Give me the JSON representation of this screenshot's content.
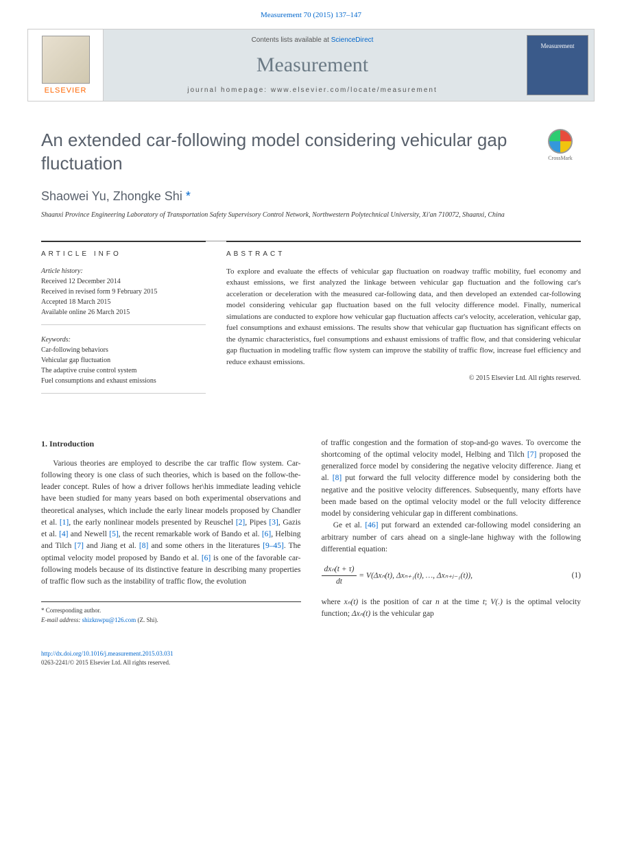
{
  "header": {
    "citation": "Measurement 70 (2015) 137–147",
    "contents_prefix": "Contents lists available at ",
    "contents_link": "ScienceDirect",
    "journal_name": "Measurement",
    "homepage_prefix": "journal homepage: ",
    "homepage_url": "www.elsevier.com/locate/measurement",
    "publisher": "ELSEVIER",
    "cover_label": "Measurement"
  },
  "article": {
    "title": "An extended car-following model considering vehicular gap fluctuation",
    "crossmark": "CrossMark",
    "authors": "Shaowei Yu, Zhongke Shi",
    "corr_marker": "*",
    "affiliation": "Shaanxi Province Engineering Laboratory of Transportation Safety Supervisory Control Network, Northwestern Polytechnical University, Xi'an 710072, Shaanxi, China"
  },
  "info": {
    "heading": "ARTICLE INFO",
    "history_label": "Article history:",
    "received": "Received 12 December 2014",
    "revised": "Received in revised form 9 February 2015",
    "accepted": "Accepted 18 March 2015",
    "online": "Available online 26 March 2015",
    "keywords_label": "Keywords:",
    "kw1": "Car-following behaviors",
    "kw2": "Vehicular gap fluctuation",
    "kw3": "The adaptive cruise control system",
    "kw4": "Fuel consumptions and exhaust emissions"
  },
  "abstract": {
    "heading": "ABSTRACT",
    "text": "To explore and evaluate the effects of vehicular gap fluctuation on roadway traffic mobility, fuel economy and exhaust emissions, we first analyzed the linkage between vehicular gap fluctuation and the following car's acceleration or deceleration with the measured car-following data, and then developed an extended car-following model considering vehicular gap fluctuation based on the full velocity difference model. Finally, numerical simulations are conducted to explore how vehicular gap fluctuation affects car's velocity, acceleration, vehicular gap, fuel consumptions and exhaust emissions. The results show that vehicular gap fluctuation has significant effects on the dynamic characteristics, fuel consumptions and exhaust emissions of traffic flow, and that considering vehicular gap fluctuation in modeling traffic flow system can improve the stability of traffic flow, increase fuel efficiency and reduce exhaust emissions.",
    "copyright": "© 2015 Elsevier Ltd. All rights reserved."
  },
  "body": {
    "section_num": "1. Introduction",
    "col1_p1_a": "Various theories are employed to describe the car traffic flow system. Car-following theory is one class of such theories, which is based on the follow-the-leader concept. Rules of how a driver follows her\\his immediate leading vehicle have been studied for many years based on both experimental observations and theoretical analyses, which include the early linear models proposed by Chandler et al. ",
    "ref1": "[1]",
    "col1_p1_b": ", the early nonlinear models presented by Reuschel ",
    "ref2": "[2]",
    "col1_p1_c": ", Pipes ",
    "ref3": "[3]",
    "col1_p1_d": ", Gazis et al. ",
    "ref4": "[4]",
    "col1_p1_e": " and Newell ",
    "ref5": "[5]",
    "col1_p1_f": ", the recent remarkable work of Bando et al. ",
    "ref6": "[6]",
    "col1_p1_g": ", Helbing and Tilch ",
    "ref7": "[7]",
    "col1_p1_h": " and Jiang et al. ",
    "ref8": "[8]",
    "col1_p1_i": " and some others in the literatures ",
    "ref9": "[9–45]",
    "col1_p1_j": ". The optimal velocity model proposed by Bando et al. ",
    "ref6b": "[6]",
    "col1_p1_k": " is one of the favorable car-following models because of its distinctive feature in describing many properties of traffic flow such as the instability of traffic flow, the evolution",
    "col2_p1_a": "of traffic congestion and the formation of stop-and-go waves. To overcome the shortcoming of the optimal velocity model, Helbing and Tilch ",
    "ref7b": "[7]",
    "col2_p1_b": " proposed the generalized force model by considering the negative velocity difference. Jiang et al. ",
    "ref8b": "[8]",
    "col2_p1_c": " put forward the full velocity difference model by considering both the negative and the positive velocity differences. Subsequently, many efforts have been made based on the optimal velocity model or the full velocity difference model by considering vehicular gap in different combinations.",
    "col2_p2_a": "Ge et al. ",
    "ref46": "[46]",
    "col2_p2_b": " put forward an extended car-following model considering an arbitrary number of cars ahead on a single-lane highway with the following differential equation:",
    "eq_num": "(1)",
    "col2_p3_a": "where ",
    "col2_p3_b": " is the position of car ",
    "col2_p3_c": " at the time ",
    "col2_p3_d": "; ",
    "col2_p3_e": " is the optimal velocity function; ",
    "col2_p3_f": " is the vehicular gap"
  },
  "equation": {
    "lhs_num": "dxₙ(t + τ)",
    "lhs_den": "dt",
    "rhs": " = V(Δxₙ(t), Δxₙ₊₁(t), …, Δxₙ₊ⱼ₋₁(t)),",
    "var_xn": "xₙ(t)",
    "var_n": "n",
    "var_t": "t",
    "var_V": "V(.)",
    "var_dxn": "Δxₙ(t)"
  },
  "footer": {
    "corr_label": "* Corresponding author.",
    "email_label": "E-mail address: ",
    "email": "shizknwpu@126.com",
    "email_suffix": " (Z. Shi).",
    "doi": "http://dx.doi.org/10.1016/j.measurement.2015.03.031",
    "issn": "0263-2241/© 2015 Elsevier Ltd. All rights reserved."
  },
  "colors": {
    "link": "#0066cc",
    "title": "#58606b",
    "masthead_bg": "#dfe5e8",
    "elsevier_orange": "#ff6600"
  }
}
